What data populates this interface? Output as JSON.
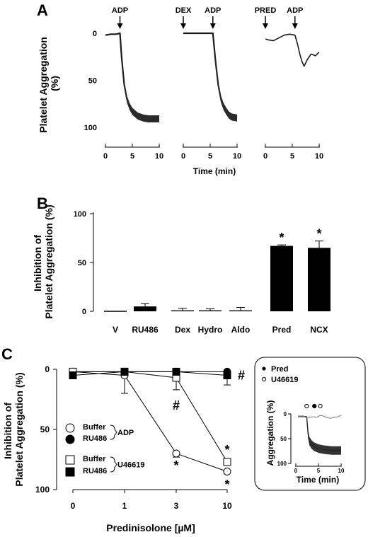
{
  "chart_data": [
    {
      "panel": "A",
      "type": "line",
      "ylabel": "Platelet Aggregation (%)",
      "ylabel_lines": [
        "Platelet Aggregation",
        "(%)"
      ],
      "xlabel": "Time (min)",
      "yticks": [
        0,
        50,
        100
      ],
      "xticks": [
        0,
        5,
        10
      ],
      "ylim": [
        0,
        100
      ],
      "traces": [
        {
          "name": "ADP",
          "events": [
            {
              "label": "ADP",
              "t": 2.7
            }
          ],
          "t": [
            0,
            1,
            2,
            2.7,
            3.0,
            3.5,
            4.0,
            4.5,
            5.0,
            6.0,
            7.0,
            8.0,
            9.0,
            10.0
          ],
          "y": [
            2,
            1,
            1,
            0,
            25,
            55,
            70,
            78,
            83,
            88,
            90,
            91,
            91,
            91
          ]
        },
        {
          "name": "DEX + ADP",
          "events": [
            {
              "label": "DEX",
              "t": 0
            },
            {
              "label": "ADP",
              "t": 5.5
            }
          ],
          "t": [
            0,
            1,
            2,
            3,
            4,
            5,
            5.5,
            6.0,
            6.5,
            7.0,
            7.5,
            8.0,
            8.5,
            9.0,
            10.0
          ],
          "y": [
            0,
            0,
            0,
            0,
            0,
            0,
            0,
            30,
            55,
            70,
            78,
            83,
            87,
            89,
            90
          ]
        },
        {
          "name": "PRED + ADP",
          "events": [
            {
              "label": "PRED",
              "t": 0
            },
            {
              "label": "ADP",
              "t": 5.5
            }
          ],
          "t": [
            0,
            0.5,
            1.5,
            2.5,
            3.5,
            4.5,
            5.5,
            6.0,
            6.4,
            6.8,
            7.2,
            7.8,
            8.5,
            9.3,
            10.0
          ],
          "y": [
            6,
            7,
            8,
            5,
            2,
            1,
            2,
            12,
            22,
            30,
            35,
            28,
            22,
            24,
            20
          ]
        }
      ]
    },
    {
      "panel": "B",
      "type": "bar",
      "ylabel": "Inhibition of Platelet Aggregation (%)",
      "ylabel_lines": [
        "Inhibition of",
        "Platelet Aggregation (%)"
      ],
      "categories": [
        "V",
        "RU486",
        "Dex",
        "Hydro",
        "Aldo",
        "Pred",
        "NCX"
      ],
      "values": [
        0,
        5,
        1,
        1,
        1,
        67,
        65
      ],
      "errors": [
        0,
        3,
        2,
        1.5,
        3,
        1,
        7
      ],
      "significant": [
        false,
        false,
        false,
        false,
        false,
        true,
        true
      ],
      "sig_marker": "*",
      "yticks": [
        0,
        50,
        100
      ],
      "ylim": [
        0,
        100
      ]
    },
    {
      "panel": "C",
      "type": "line",
      "ylabel": "Inhibition of Platelet Aggregation (%)",
      "ylabel_lines": [
        "Inhibition of",
        "Platelet Aggregation (%)"
      ],
      "xlabel": "Predinisolone [µM]",
      "x": [
        0,
        1,
        3,
        10
      ],
      "xtick_labels": [
        "0",
        "1",
        "3",
        "10"
      ],
      "yticks": [
        0,
        50,
        100
      ],
      "ylim": [
        0,
        100
      ],
      "series": [
        {
          "name": "Buffer ADP",
          "marker": "circle",
          "fill": "open",
          "values": [
            2,
            5,
            70,
            85
          ],
          "errors": [
            0,
            15,
            3,
            0
          ]
        },
        {
          "name": "RU486 ADP",
          "marker": "circle",
          "fill": "filled",
          "values": [
            2,
            2,
            2,
            2
          ],
          "errors": [
            0,
            0,
            0,
            0
          ]
        },
        {
          "name": "Buffer U46619",
          "marker": "square",
          "fill": "open",
          "values": [
            2,
            2,
            7,
            77
          ],
          "errors": [
            0,
            0,
            10,
            0
          ]
        },
        {
          "name": "RU486 U46619",
          "marker": "square",
          "fill": "filled",
          "values": [
            5,
            2,
            2,
            5
          ],
          "errors": [
            0,
            0,
            0,
            8
          ]
        }
      ],
      "legend": {
        "groups": [
          {
            "label": "ADP",
            "entries": [
              "Buffer",
              "RU486"
            ]
          },
          {
            "label": "U46619",
            "entries": [
              "Buffer",
              "RU486"
            ]
          }
        ],
        "placement": "lower-left"
      },
      "annotations": [
        {
          "text": "*",
          "x": 3,
          "y": 80
        },
        {
          "text": "*",
          "x": 10,
          "y": 67
        },
        {
          "text": "*",
          "x": 10,
          "y": 96
        },
        {
          "text": "#",
          "x": 3,
          "y": 30
        },
        {
          "text": "#",
          "x": 10,
          "y": 5
        }
      ]
    },
    {
      "panel": "C-inset",
      "type": "line",
      "ylabel": "Aggregation (%)",
      "xlabel": "Time (min)",
      "yticks": [
        0,
        50,
        100
      ],
      "xticks": [
        0,
        5,
        10
      ],
      "ylim": [
        0,
        100
      ],
      "legend": {
        "entries": [
          {
            "label": "Pred",
            "fill": "filled"
          },
          {
            "label": "U46619",
            "fill": "open"
          }
        ],
        "placement": "top-left"
      },
      "events": [
        {
          "label": "U46619",
          "t": 2.4
        },
        {
          "label": "Pred",
          "t": 4.1
        },
        {
          "label": "U46619",
          "t": 5.4
        }
      ],
      "traces": [
        {
          "name": "U46619",
          "t": [
            0.5,
            1.5,
            2.4,
            2.7,
            3.0,
            3.5,
            4.0,
            5.0,
            6.0,
            7.0,
            8.0,
            9.0,
            10.0
          ],
          "y": [
            5,
            5,
            6,
            40,
            55,
            62,
            66,
            70,
            72,
            73,
            74,
            74,
            74
          ]
        },
        {
          "name": "Pred + U46619",
          "t": [
            0.5,
            1.5,
            2.5,
            3.5,
            4.1,
            4.6,
            5.4,
            6.0,
            6.8,
            7.6,
            8.4,
            9.2,
            10.0
          ],
          "y": [
            5,
            4,
            8,
            6,
            6,
            7,
            3,
            4,
            7,
            9,
            7,
            6,
            3
          ]
        }
      ]
    }
  ],
  "labels": {
    "panel_a": "A",
    "panel_b": "B",
    "panel_c": "C",
    "inset_pred": "Pred",
    "inset_u46619": "U46619"
  }
}
